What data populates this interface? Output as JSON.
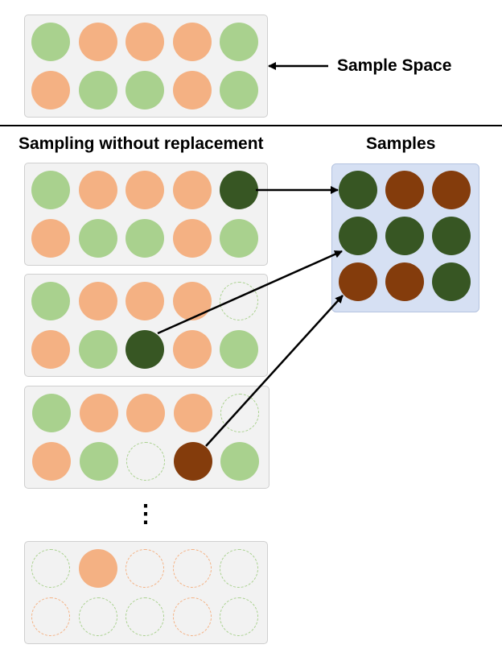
{
  "labels": {
    "sample_space": "Sample Space",
    "sampling_title": "Sampling without replacement",
    "samples_title": "Samples",
    "ellipsis": "⋮"
  },
  "colors": {
    "green": "#a9d18e",
    "orange": "#f4b183",
    "dark_green": "#375623",
    "dark_brown": "#843c0c",
    "empty_green_dash": "#a9d18e",
    "empty_orange_dash": "#f4b183"
  },
  "sample_space": [
    [
      "green",
      "orange",
      "orange",
      "orange",
      "green"
    ],
    [
      "orange",
      "green",
      "green",
      "orange",
      "green"
    ]
  ],
  "sampling_steps": [
    [
      [
        "green",
        "orange",
        "orange",
        "orange",
        "dark_green"
      ],
      [
        "orange",
        "green",
        "green",
        "orange",
        "green"
      ]
    ],
    [
      [
        "green",
        "orange",
        "orange",
        "orange",
        "empty_green"
      ],
      [
        "orange",
        "green",
        "dark_green",
        "orange",
        "green"
      ]
    ],
    [
      [
        "green",
        "orange",
        "orange",
        "orange",
        "empty_green"
      ],
      [
        "orange",
        "green",
        "empty_green",
        "dark_brown",
        "green"
      ]
    ],
    [
      [
        "empty_green",
        "orange",
        "empty_orange",
        "empty_orange",
        "empty_green"
      ],
      [
        "empty_orange",
        "empty_green",
        "empty_green",
        "empty_orange",
        "empty_green"
      ]
    ]
  ],
  "samples": [
    [
      "dark_green",
      "dark_brown",
      "dark_brown"
    ],
    [
      "dark_green",
      "dark_green",
      "dark_green"
    ],
    [
      "dark_brown",
      "dark_brown",
      "dark_green"
    ]
  ]
}
